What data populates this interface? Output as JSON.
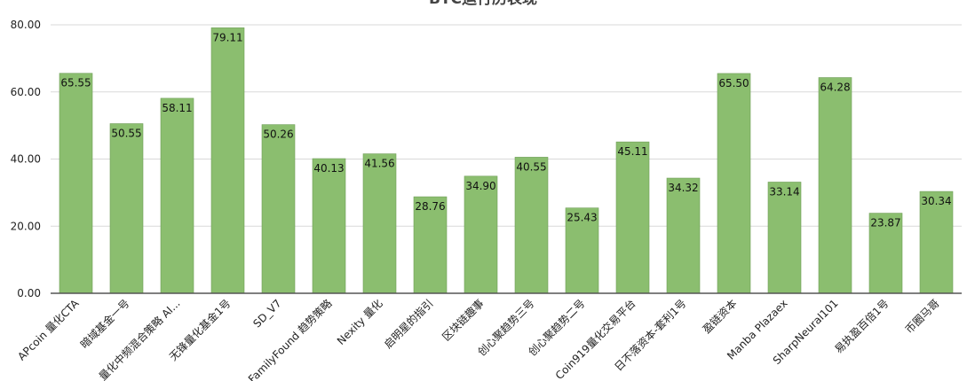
{
  "chart_data": {
    "type": "bar",
    "title": "BTC运行历表现",
    "categories": [
      "APcoin 量化CTA",
      "暗域基金一号",
      "量化中频混合策略 AI...",
      "无锋量化基金1号",
      "SD_V7",
      "FamilyFound 趋势策略",
      "Nexity 量化",
      "启明星的指引",
      "区块链趣事",
      "创心聚趋势三号",
      "创心聚趋势二号",
      "Coin919量化交易平台",
      "日不落资本-套利1号",
      "盈链资本",
      "Manba Plazaex",
      "SharpNeural101",
      "易执盈百倍1号",
      "币圈马哥"
    ],
    "values": [
      65.55,
      50.55,
      58.11,
      79.11,
      50.26,
      40.13,
      41.56,
      28.76,
      34.9,
      40.55,
      25.43,
      45.11,
      34.32,
      65.5,
      33.14,
      64.28,
      23.87,
      30.34
    ],
    "data_labels": [
      "65.55",
      "50.55",
      "58.11",
      "79.11",
      "50.26",
      "40.13",
      "41.56",
      "28.76",
      "34.90",
      "40.55",
      "25.43",
      "45.11",
      "34.32",
      "65.50",
      "33.14",
      "64.28",
      "23.87",
      "30.34"
    ],
    "ylim": [
      0,
      80
    ],
    "yticks": [
      0,
      20,
      40,
      60,
      80
    ],
    "ytick_labels": [
      "0.00",
      "20.00",
      "40.00",
      "60.00",
      "80.00"
    ],
    "xlabel": "",
    "ylabel": "",
    "grid": true,
    "legend": "none",
    "bar_color": "#8bbe6f",
    "bar_border_color": "#6f9e57"
  }
}
